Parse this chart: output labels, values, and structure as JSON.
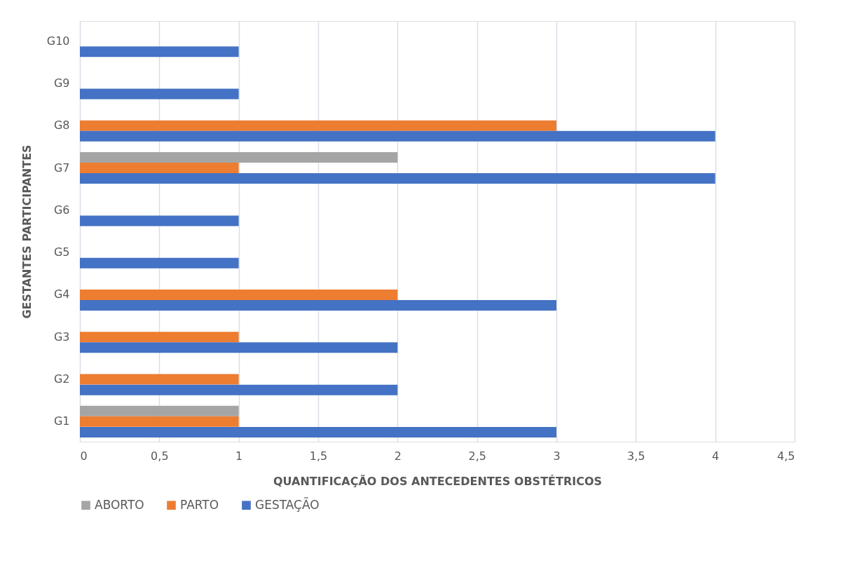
{
  "chart_data": {
    "type": "bar",
    "orientation": "horizontal",
    "xlabel": "QUANTIFICAÇÃO DOS ANTECEDENTES OBSTÉTRICOS",
    "ylabel": "GESTANTES PARTICIPANTES",
    "categories": [
      "G10",
      "G9",
      "G8",
      "G7",
      "G6",
      "G5",
      "G4",
      "G3",
      "G2",
      "G1"
    ],
    "series": [
      {
        "name": "ABORTO",
        "color": "#a5a5a5",
        "values": [
          null,
          null,
          null,
          2,
          null,
          null,
          null,
          null,
          null,
          1
        ]
      },
      {
        "name": "PARTO",
        "color": "#ed7d31",
        "values": [
          null,
          null,
          3,
          1,
          null,
          null,
          2,
          1,
          1,
          1
        ]
      },
      {
        "name": "GESTAÇÃO",
        "color": "#4472c4",
        "values": [
          1,
          1,
          4,
          4,
          1,
          1,
          3,
          2,
          2,
          3
        ]
      }
    ],
    "xlim": [
      0,
      4.5
    ],
    "xticks": [
      0,
      {
        "value": 0.5,
        "label": "0,5"
      },
      1,
      {
        "value": 1.5,
        "label": "1,5"
      },
      2,
      {
        "value": 2.5,
        "label": "2,5"
      },
      3,
      {
        "value": 3.5,
        "label": "3,5"
      },
      4,
      {
        "value": 4.5,
        "label": "4,5"
      }
    ],
    "grid": "x",
    "legend": "bottom"
  }
}
